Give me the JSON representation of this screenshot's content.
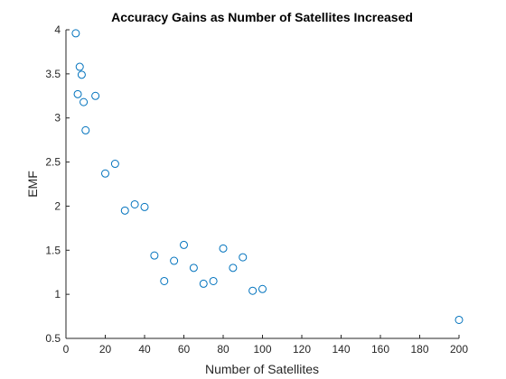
{
  "chart_data": {
    "type": "scatter",
    "title": "Accuracy Gains as Number of Satellites Increased",
    "xlabel": "Number of Satellites",
    "ylabel": "EMF",
    "xlim": [
      0,
      200
    ],
    "ylim": [
      0.5,
      4
    ],
    "xticks": [
      0,
      20,
      40,
      60,
      80,
      100,
      120,
      140,
      160,
      180,
      200
    ],
    "yticks": [
      0.5,
      1,
      1.5,
      2,
      2.5,
      3,
      3.5,
      4
    ],
    "ytick_labels": [
      "0.5",
      "1",
      "1.5",
      "2",
      "2.5",
      "3",
      "3.5",
      "4"
    ],
    "grid": false,
    "marker": "circle-open",
    "color": "#0072BD",
    "points": [
      {
        "x": 5,
        "y": 3.96
      },
      {
        "x": 6,
        "y": 3.27
      },
      {
        "x": 7,
        "y": 3.58
      },
      {
        "x": 8,
        "y": 3.49
      },
      {
        "x": 9,
        "y": 3.18
      },
      {
        "x": 10,
        "y": 2.86
      },
      {
        "x": 15,
        "y": 3.25
      },
      {
        "x": 20,
        "y": 2.37
      },
      {
        "x": 25,
        "y": 2.48
      },
      {
        "x": 30,
        "y": 1.95
      },
      {
        "x": 35,
        "y": 2.02
      },
      {
        "x": 40,
        "y": 1.99
      },
      {
        "x": 45,
        "y": 1.44
      },
      {
        "x": 50,
        "y": 1.15
      },
      {
        "x": 55,
        "y": 1.38
      },
      {
        "x": 60,
        "y": 1.56
      },
      {
        "x": 65,
        "y": 1.3
      },
      {
        "x": 70,
        "y": 1.12
      },
      {
        "x": 75,
        "y": 1.15
      },
      {
        "x": 80,
        "y": 1.52
      },
      {
        "x": 85,
        "y": 1.3
      },
      {
        "x": 90,
        "y": 1.42
      },
      {
        "x": 95,
        "y": 1.04
      },
      {
        "x": 100,
        "y": 1.06
      },
      {
        "x": 200,
        "y": 0.71
      }
    ]
  }
}
